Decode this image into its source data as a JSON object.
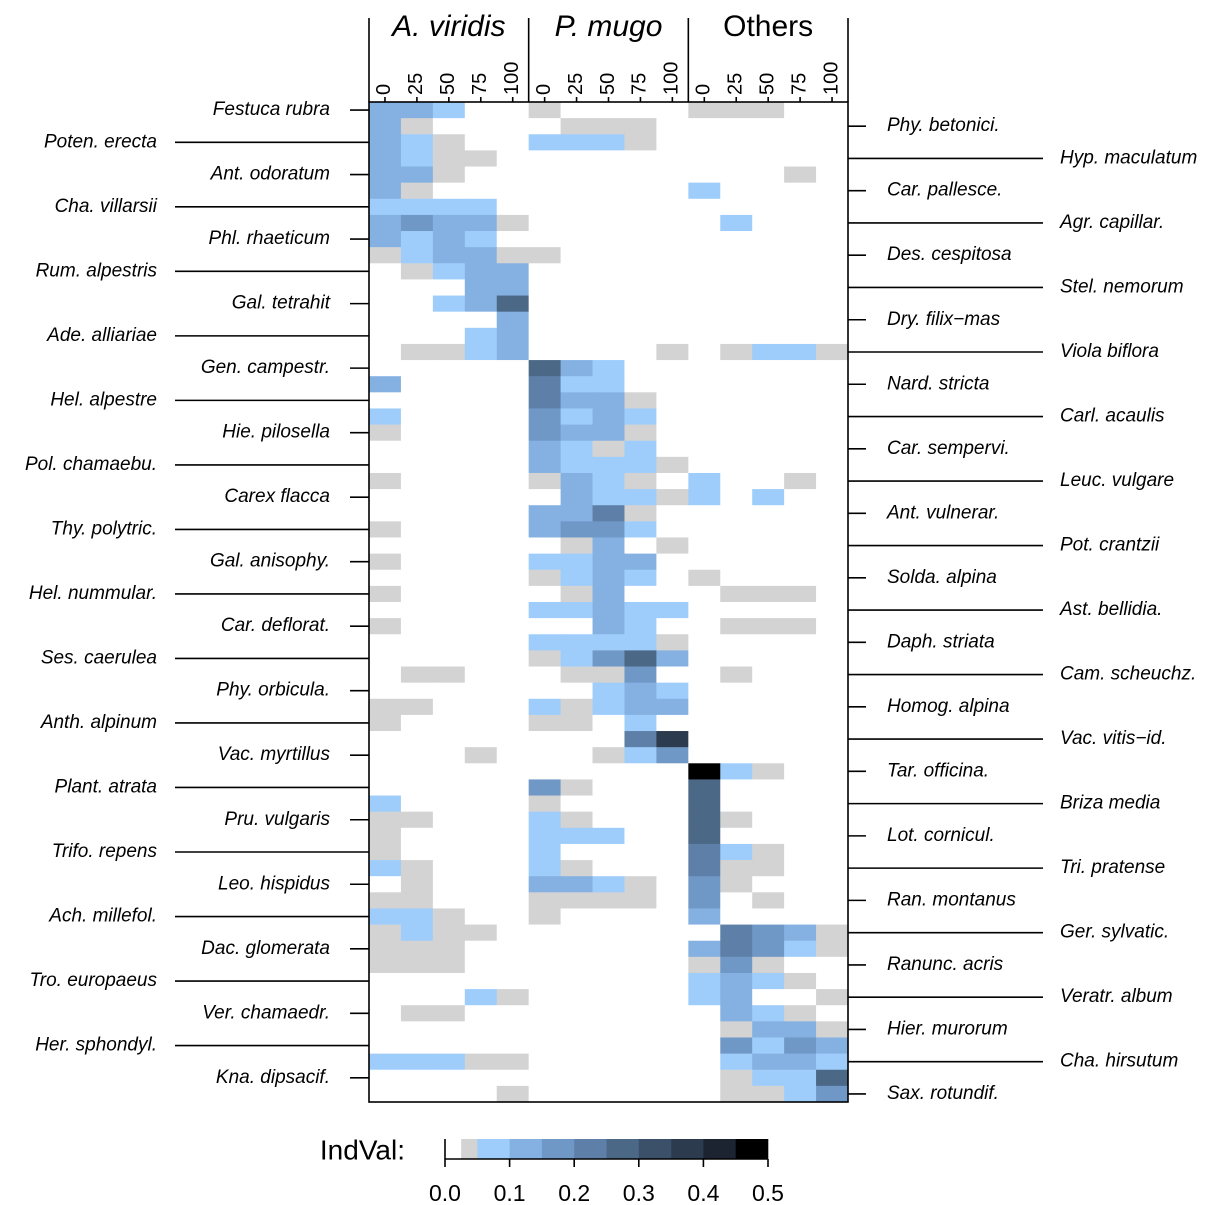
{
  "chart_data": {
    "type": "heatmap",
    "groups": [
      "A. viridis",
      "P. mugo",
      "Others"
    ],
    "group_italic": [
      true,
      true,
      false
    ],
    "levels": [
      0,
      25,
      50,
      75,
      100
    ],
    "rows": [
      "Festuca rubra",
      "Phy. betonici.",
      "Poten. erecta",
      "Hyp. maculatum",
      "Ant. odoratum",
      "Car. pallesce.",
      "Cha. villarsii",
      "Agr. capillar.",
      "Phl. rhaeticum",
      "Des. cespitosa",
      "Rum. alpestris",
      "Stel. nemorum",
      "Gal. tetrahit",
      "Dry. filix−mas",
      "Ade. alliariae",
      "Viola biflora",
      "Gen. campestr.",
      "Nard. stricta",
      "Hel. alpestre",
      "Carl. acaulis",
      "Hie. pilosella",
      "Car. sempervi.",
      "Pol. chamaebu.",
      "Leuc. vulgare",
      "Carex flacca",
      "Ant. vulnerar.",
      "Thy. polytric.",
      "Pot. crantzii",
      "Gal. anisophy.",
      "Solda. alpina",
      "Hel. nummular.",
      "Ast. bellidia.",
      "Car. deflorat.",
      "Daph. striata",
      "Ses. caerulea",
      "Cam. scheuchz.",
      "Phy. orbicula.",
      "Homog. alpina",
      "Anth. alpinum",
      "Vac. vitis−id.",
      "Vac. myrtillus",
      "Tar. officina.",
      "Plant. atrata",
      "Briza media",
      "Pru. vulgaris",
      "Lot. cornicul.",
      "Trifo. repens",
      "Tri. pratense",
      "Leo. hispidus",
      "Ran. montanus",
      "Ach. millefol.",
      "Ger. sylvatic.",
      "Dac. glomerata",
      "Ranunc. acris",
      "Tro. europaeus",
      "Veratr. album",
      "Ver. chamaedr.",
      "Hier. murorum",
      "Her. sphondyl.",
      "Cha. hirsutum",
      "Kna. dipsacif.",
      "Sax. rotundif."
    ],
    "values": [
      [
        0.12,
        0.12,
        0.07,
        0,
        0,
        0.04,
        0,
        0,
        0,
        0,
        0.04,
        0.04,
        0.04,
        0,
        0
      ],
      [
        0.12,
        0.04,
        0,
        0,
        0,
        0,
        0.04,
        0.04,
        0.04,
        0,
        0,
        0,
        0,
        0,
        0
      ],
      [
        0.12,
        0.07,
        0.04,
        0,
        0,
        0.07,
        0.07,
        0.07,
        0.04,
        0,
        0,
        0,
        0,
        0,
        0
      ],
      [
        0.12,
        0.07,
        0.04,
        0.04,
        0,
        0,
        0,
        0,
        0,
        0,
        0,
        0,
        0,
        0,
        0
      ],
      [
        0.12,
        0.12,
        0.04,
        0,
        0,
        0,
        0,
        0,
        0,
        0,
        0,
        0,
        0,
        0.04,
        0
      ],
      [
        0.12,
        0.04,
        0,
        0,
        0,
        0,
        0,
        0,
        0,
        0,
        0.07,
        0,
        0,
        0,
        0
      ],
      [
        0.07,
        0.07,
        0.07,
        0.07,
        0,
        0,
        0,
        0,
        0,
        0,
        0,
        0,
        0,
        0,
        0
      ],
      [
        0.12,
        0.17,
        0.12,
        0.12,
        0.04,
        0,
        0,
        0,
        0,
        0,
        0,
        0.07,
        0,
        0,
        0
      ],
      [
        0.12,
        0.07,
        0.12,
        0.07,
        0,
        0,
        0,
        0,
        0,
        0,
        0,
        0,
        0,
        0,
        0
      ],
      [
        0.04,
        0.07,
        0.12,
        0.12,
        0.04,
        0.04,
        0,
        0,
        0,
        0,
        0,
        0,
        0,
        0,
        0
      ],
      [
        0,
        0.04,
        0.07,
        0.12,
        0.12,
        0,
        0,
        0,
        0,
        0,
        0,
        0,
        0,
        0,
        0
      ],
      [
        0,
        0,
        0,
        0.12,
        0.12,
        0,
        0,
        0,
        0,
        0,
        0,
        0,
        0,
        0,
        0
      ],
      [
        0,
        0,
        0.07,
        0.12,
        0.27,
        0,
        0,
        0,
        0,
        0,
        0,
        0,
        0,
        0,
        0
      ],
      [
        0,
        0,
        0,
        0,
        0.12,
        0,
        0,
        0,
        0,
        0,
        0,
        0,
        0,
        0,
        0
      ],
      [
        0,
        0,
        0,
        0.07,
        0.12,
        0,
        0,
        0,
        0,
        0,
        0,
        0,
        0,
        0,
        0
      ],
      [
        0,
        0.04,
        0.04,
        0.07,
        0.12,
        0,
        0,
        0,
        0,
        0.04,
        0,
        0.04,
        0.07,
        0.07,
        0.04
      ],
      [
        0,
        0,
        0,
        0,
        0,
        0.27,
        0.12,
        0.07,
        0,
        0,
        0,
        0,
        0,
        0,
        0
      ],
      [
        0.12,
        0,
        0,
        0,
        0,
        0.22,
        0.07,
        0.07,
        0,
        0,
        0,
        0,
        0,
        0,
        0
      ],
      [
        0,
        0,
        0,
        0,
        0,
        0.22,
        0.12,
        0.12,
        0.04,
        0,
        0,
        0,
        0,
        0,
        0
      ],
      [
        0.07,
        0,
        0,
        0,
        0,
        0.17,
        0.07,
        0.12,
        0.07,
        0,
        0,
        0,
        0,
        0,
        0
      ],
      [
        0.04,
        0,
        0,
        0,
        0,
        0.17,
        0.12,
        0.12,
        0.04,
        0,
        0,
        0,
        0,
        0,
        0
      ],
      [
        0,
        0,
        0,
        0,
        0,
        0.12,
        0.07,
        0.04,
        0.07,
        0,
        0,
        0,
        0,
        0,
        0
      ],
      [
        0,
        0,
        0,
        0,
        0,
        0.12,
        0.07,
        0.07,
        0.07,
        0.04,
        0,
        0,
        0,
        0,
        0
      ],
      [
        0.04,
        0,
        0,
        0,
        0,
        0.04,
        0.12,
        0.07,
        0.04,
        0,
        0.07,
        0,
        0,
        0.04,
        0
      ],
      [
        0,
        0,
        0,
        0,
        0,
        0,
        0.12,
        0.07,
        0.07,
        0.04,
        0.07,
        0,
        0.07,
        0,
        0
      ],
      [
        0,
        0,
        0,
        0,
        0,
        0.12,
        0.12,
        0.22,
        0.04,
        0,
        0,
        0,
        0,
        0,
        0
      ],
      [
        0.04,
        0,
        0,
        0,
        0,
        0.12,
        0.17,
        0.17,
        0.07,
        0,
        0,
        0,
        0,
        0,
        0
      ],
      [
        0,
        0,
        0,
        0,
        0,
        0,
        0.04,
        0.12,
        0,
        0.04,
        0,
        0,
        0,
        0,
        0
      ],
      [
        0.04,
        0,
        0,
        0,
        0,
        0.07,
        0.07,
        0.12,
        0.12,
        0,
        0,
        0,
        0,
        0,
        0
      ],
      [
        0,
        0,
        0,
        0,
        0,
        0.04,
        0.07,
        0.12,
        0.07,
        0,
        0.04,
        0,
        0,
        0,
        0
      ],
      [
        0.04,
        0,
        0,
        0,
        0,
        0,
        0.04,
        0.12,
        0,
        0,
        0,
        0.04,
        0.04,
        0.04,
        0
      ],
      [
        0,
        0,
        0,
        0,
        0,
        0.07,
        0.07,
        0.12,
        0.07,
        0.07,
        0,
        0,
        0,
        0,
        0
      ],
      [
        0.04,
        0,
        0,
        0,
        0,
        0,
        0,
        0.12,
        0.07,
        0,
        0,
        0.04,
        0.04,
        0.04,
        0
      ],
      [
        0,
        0,
        0,
        0,
        0,
        0.07,
        0.07,
        0.07,
        0.07,
        0.04,
        0,
        0,
        0,
        0,
        0
      ],
      [
        0,
        0,
        0,
        0,
        0,
        0.04,
        0.07,
        0.17,
        0.27,
        0.12,
        0,
        0,
        0,
        0,
        0
      ],
      [
        0,
        0.04,
        0.04,
        0,
        0,
        0,
        0.04,
        0.04,
        0.17,
        0,
        0,
        0.04,
        0,
        0,
        0
      ],
      [
        0,
        0,
        0,
        0,
        0,
        0,
        0,
        0.07,
        0.12,
        0.07,
        0,
        0,
        0,
        0,
        0
      ],
      [
        0.04,
        0.04,
        0,
        0,
        0,
        0.07,
        0.04,
        0.07,
        0.12,
        0.12,
        0,
        0,
        0,
        0,
        0
      ],
      [
        0.04,
        0,
        0,
        0,
        0,
        0.04,
        0.04,
        0,
        0.07,
        0,
        0,
        0,
        0,
        0,
        0
      ],
      [
        0,
        0,
        0,
        0,
        0,
        0,
        0,
        0,
        0.22,
        0.37,
        0,
        0,
        0,
        0,
        0
      ],
      [
        0,
        0,
        0,
        0.04,
        0,
        0,
        0,
        0.04,
        0.07,
        0.17,
        0,
        0,
        0,
        0,
        0
      ],
      [
        0,
        0,
        0,
        0,
        0,
        0,
        0,
        0,
        0,
        0,
        0.47,
        0.07,
        0.04,
        0,
        0
      ],
      [
        0,
        0,
        0,
        0,
        0,
        0.17,
        0.04,
        0,
        0,
        0,
        0.27,
        0,
        0,
        0,
        0
      ],
      [
        0.07,
        0,
        0,
        0,
        0,
        0.04,
        0,
        0,
        0,
        0,
        0.27,
        0,
        0,
        0,
        0
      ],
      [
        0.04,
        0.04,
        0,
        0,
        0,
        0.07,
        0.04,
        0,
        0,
        0,
        0.27,
        0.04,
        0,
        0,
        0
      ],
      [
        0.04,
        0,
        0,
        0,
        0,
        0.07,
        0.07,
        0.07,
        0,
        0,
        0.27,
        0,
        0,
        0,
        0
      ],
      [
        0.04,
        0,
        0,
        0,
        0,
        0.07,
        0,
        0,
        0,
        0,
        0.22,
        0.07,
        0.04,
        0,
        0
      ],
      [
        0.07,
        0.04,
        0,
        0,
        0,
        0.07,
        0.04,
        0,
        0,
        0,
        0.22,
        0.04,
        0.04,
        0,
        0
      ],
      [
        0,
        0.04,
        0,
        0,
        0,
        0.12,
        0.12,
        0.07,
        0.04,
        0,
        0.17,
        0.04,
        0,
        0,
        0
      ],
      [
        0.04,
        0.04,
        0,
        0,
        0,
        0.04,
        0.04,
        0.04,
        0.04,
        0,
        0.17,
        0,
        0.04,
        0,
        0
      ],
      [
        0.07,
        0.07,
        0.04,
        0,
        0,
        0.04,
        0,
        0,
        0,
        0,
        0.12,
        0,
        0,
        0,
        0
      ],
      [
        0.04,
        0.07,
        0.04,
        0.04,
        0,
        0,
        0,
        0,
        0,
        0,
        0,
        0.22,
        0.17,
        0.12,
        0.04
      ],
      [
        0.04,
        0.04,
        0.04,
        0,
        0,
        0,
        0,
        0,
        0,
        0,
        0.12,
        0.22,
        0.17,
        0.07,
        0.04
      ],
      [
        0.04,
        0.04,
        0.04,
        0,
        0,
        0,
        0,
        0,
        0,
        0,
        0.04,
        0.17,
        0.04,
        0,
        0
      ],
      [
        0,
        0,
        0,
        0,
        0,
        0,
        0,
        0,
        0,
        0,
        0.07,
        0.12,
        0.07,
        0.04,
        0
      ],
      [
        0,
        0,
        0,
        0.07,
        0.04,
        0,
        0,
        0,
        0,
        0,
        0.07,
        0.12,
        0,
        0,
        0.04
      ],
      [
        0,
        0.04,
        0.04,
        0,
        0,
        0,
        0,
        0,
        0,
        0,
        0,
        0.12,
        0.07,
        0.04,
        0
      ],
      [
        0,
        0,
        0,
        0,
        0,
        0,
        0,
        0,
        0,
        0,
        0,
        0.04,
        0.12,
        0.12,
        0.04
      ],
      [
        0,
        0,
        0,
        0,
        0,
        0,
        0,
        0,
        0,
        0,
        0,
        0.17,
        0.07,
        0.17,
        0.12
      ],
      [
        0.07,
        0.07,
        0.07,
        0.04,
        0.04,
        0,
        0,
        0,
        0,
        0,
        0,
        0.07,
        0.12,
        0.12,
        0.07
      ],
      [
        0,
        0,
        0,
        0,
        0,
        0,
        0,
        0,
        0,
        0,
        0,
        0.04,
        0.07,
        0.07,
        0.27
      ],
      [
        0,
        0,
        0,
        0,
        0.04,
        0,
        0,
        0,
        0,
        0,
        0,
        0.04,
        0.04,
        0.07,
        0.17
      ]
    ],
    "legend_title": "IndVal:",
    "breaks": [
      0,
      0.025,
      0.05,
      0.1,
      0.15,
      0.2,
      0.25,
      0.3,
      0.35,
      0.4,
      0.45,
      0.5
    ],
    "colors": [
      "#ffffff",
      "#d3d3d3",
      "#9fcdfb",
      "#85b1e2",
      "#7098c6",
      "#5e80a8",
      "#4c6887",
      "#3b5069",
      "#2c3b4d",
      "#1b2430",
      "#000000"
    ],
    "legend_ticks": [
      {
        "value": 0,
        "label": "0.0"
      },
      {
        "value": 0.1,
        "label": "0.1"
      },
      {
        "value": 0.2,
        "label": "0.2"
      },
      {
        "value": 0.3,
        "label": "0.3"
      },
      {
        "value": 0.4,
        "label": "0.4"
      },
      {
        "value": 0.5,
        "label": "0.5"
      }
    ]
  }
}
